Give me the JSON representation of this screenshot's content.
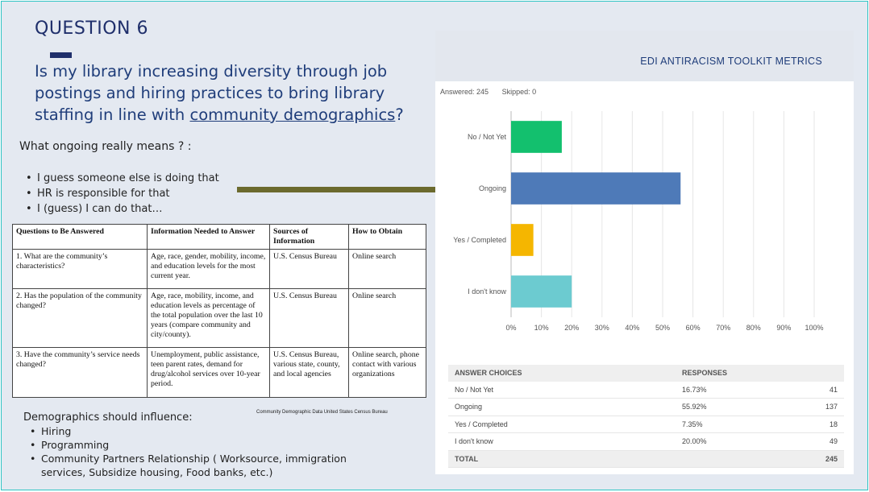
{
  "question": {
    "title": "QUESTION 6",
    "text_before": "Is my library increasing diversity through job postings and hiring practices to bring library staffing in line with ",
    "text_link": "community demographics",
    "text_after": "?"
  },
  "ongoing": {
    "heading": "What ongoing really means ? :",
    "items": [
      "I guess someone else is doing that",
      "HR is responsible for that",
      "I (guess) I can do that…"
    ]
  },
  "census_table": {
    "headers": [
      "Questions to Be Answered",
      "Information Needed to Answer",
      "Sources of Information",
      "How to Obtain"
    ],
    "rows": [
      [
        "1.  What are the community’s characteristics?",
        "Age, race, gender, mobility, income, and education levels for the most current year.",
        "U.S. Census Bureau",
        "Online search"
      ],
      [
        "2. Has the population of the community changed?",
        "Age, race, mobility, income, and education levels as percentage of the total population over the last 10 years (compare community and city/county).",
        "U.S. Census Bureau",
        "Online search"
      ],
      [
        "3.  Have the community’s service needs changed?",
        "Unemployment, public assistance, teen parent rates, demand for drug/alcohol services over 10-year period.",
        "U.S. Census Bureau, various state, county, and local agencies",
        "Online search, phone contact with various organizations"
      ]
    ],
    "caption": "Community Demographic Data United States Census Bureau"
  },
  "demographics": {
    "heading": "Demographics should influence:",
    "items": [
      "Hiring",
      "Programming",
      "Community Partners Relationship ( Worksource, immigration services, Subsidize housing, Food banks, etc.)"
    ]
  },
  "survey": {
    "title": "EDI ANTIRACISM TOOLKIT METRICS",
    "answered": "Answered: 245",
    "skipped": "Skipped: 0",
    "table_headers": {
      "choices": "ANSWER CHOICES",
      "responses": "RESPONSES"
    },
    "rows": [
      {
        "choice": "No / Not Yet",
        "percent": "16.73%",
        "count": "41"
      },
      {
        "choice": "Ongoing",
        "percent": "55.92%",
        "count": "137"
      },
      {
        "choice": "Yes / Completed",
        "percent": "7.35%",
        "count": "18"
      },
      {
        "choice": "I don't know",
        "percent": "20.00%",
        "count": "49"
      }
    ],
    "total": {
      "label": "TOTAL",
      "count": "245"
    }
  },
  "chart_data": {
    "type": "bar",
    "orientation": "horizontal",
    "categories": [
      "No / Not Yet",
      "Ongoing",
      "Yes / Completed",
      "I don't know"
    ],
    "values": [
      16.73,
      55.92,
      7.35,
      20.0
    ],
    "colors": [
      "#13c06e",
      "#4e7ab8",
      "#f5b600",
      "#6ccbd0"
    ],
    "xlim": [
      0,
      100
    ],
    "xticks": [
      "0%",
      "10%",
      "20%",
      "30%",
      "40%",
      "50%",
      "60%",
      "70%",
      "80%",
      "90%",
      "100%"
    ],
    "grid": true
  },
  "colors": {
    "accent": "#1f2f6b",
    "arrow": "#6b6a2e",
    "arrowhead_fill": "#0d2a4d"
  }
}
